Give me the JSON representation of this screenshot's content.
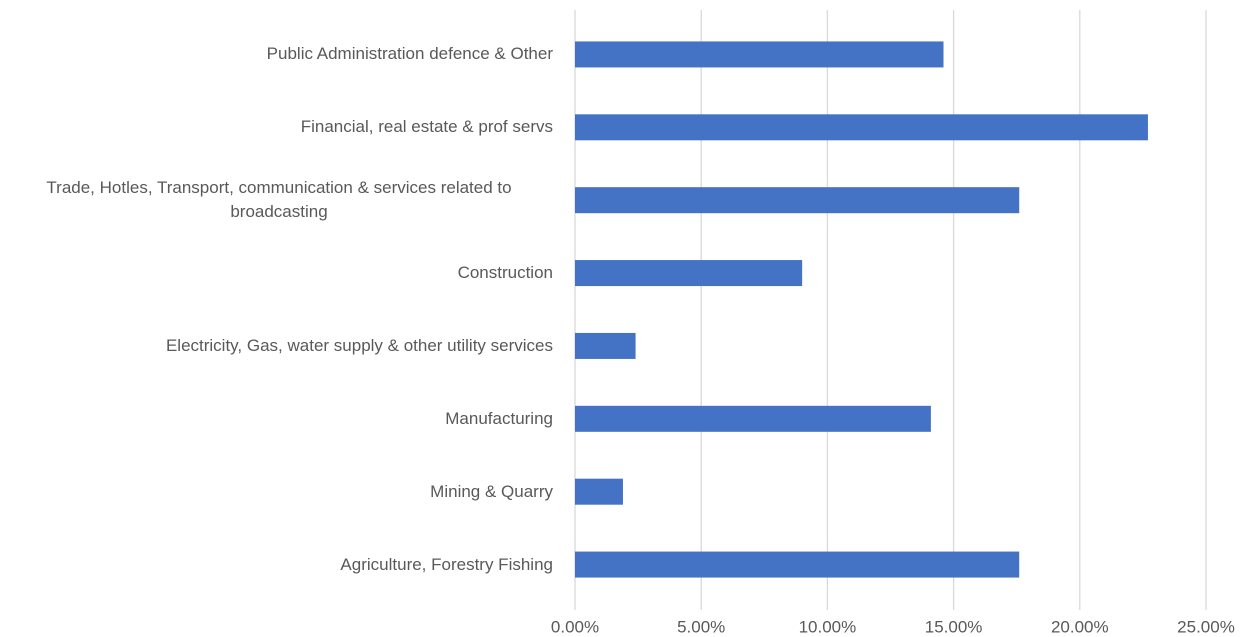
{
  "chart_data": {
    "type": "barh",
    "categories": [
      "Public Administration defence & Other",
      "Financial, real estate & prof servs",
      "Trade, Hotles, Transport, communication & services related to broadcasting",
      "Construction",
      "Electricity, Gas, water supply & other utility services",
      "Manufacturing",
      "Mining & Quarry",
      "Agriculture, Forestry Fishing"
    ],
    "values": [
      14.6,
      22.7,
      17.6,
      9.0,
      2.4,
      14.1,
      1.9,
      17.6
    ],
    "color": "#4472c4",
    "xlim": [
      0,
      25
    ],
    "xticks": [
      {
        "value": 0,
        "label": "0.00%"
      },
      {
        "value": 5,
        "label": "5.00%"
      },
      {
        "value": 10,
        "label": "10.00%"
      },
      {
        "value": 15,
        "label": "15.00%"
      },
      {
        "value": 20,
        "label": "20.00%"
      },
      {
        "value": 25,
        "label": "25.00%"
      }
    ],
    "grid": true
  }
}
